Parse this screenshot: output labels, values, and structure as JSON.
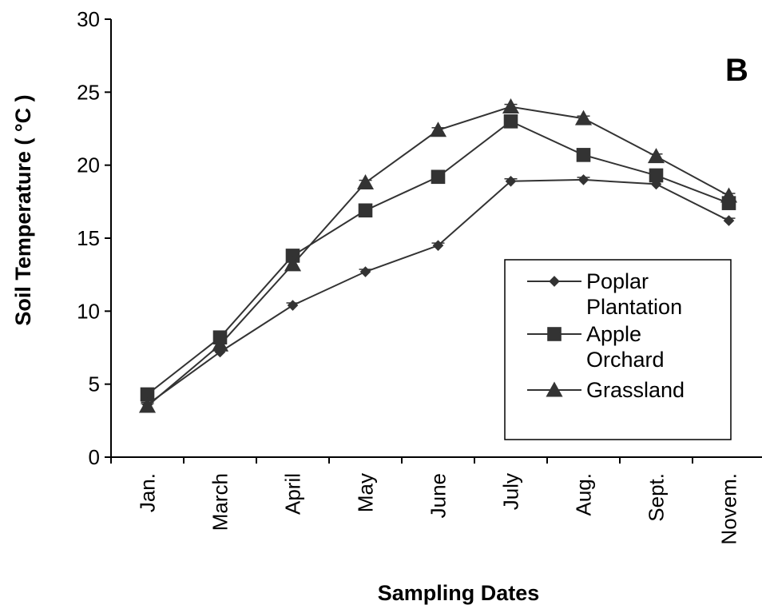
{
  "chart_data": {
    "type": "line",
    "panel_label": "B",
    "xlabel": "Sampling Dates",
    "ylabel": "Soil Temperature ( °C )",
    "categories": [
      "Jan.",
      "March",
      "April",
      "May",
      "June",
      "July",
      "Aug.",
      "Sept.",
      "Novem."
    ],
    "ylim": [
      0,
      30
    ],
    "yticks": [
      0,
      5,
      10,
      15,
      20,
      25,
      30
    ],
    "grid": false,
    "legend_position": "center-right",
    "series": [
      {
        "name": "Poplar Plantation",
        "legend_lines": [
          "Poplar",
          "Plantation"
        ],
        "marker": "diamond",
        "values": [
          3.6,
          7.2,
          10.4,
          12.7,
          14.5,
          18.9,
          19.0,
          18.7,
          16.2
        ]
      },
      {
        "name": "Apple Orchard",
        "legend_lines": [
          "Apple",
          "Orchard"
        ],
        "marker": "square",
        "values": [
          4.3,
          8.2,
          13.8,
          16.9,
          19.2,
          23.0,
          20.7,
          19.3,
          17.4
        ]
      },
      {
        "name": "Grassland",
        "legend_lines": [
          "Grassland"
        ],
        "marker": "triangle",
        "values": [
          3.5,
          7.7,
          13.2,
          18.8,
          22.4,
          24.0,
          23.2,
          20.6,
          17.9
        ]
      }
    ]
  }
}
